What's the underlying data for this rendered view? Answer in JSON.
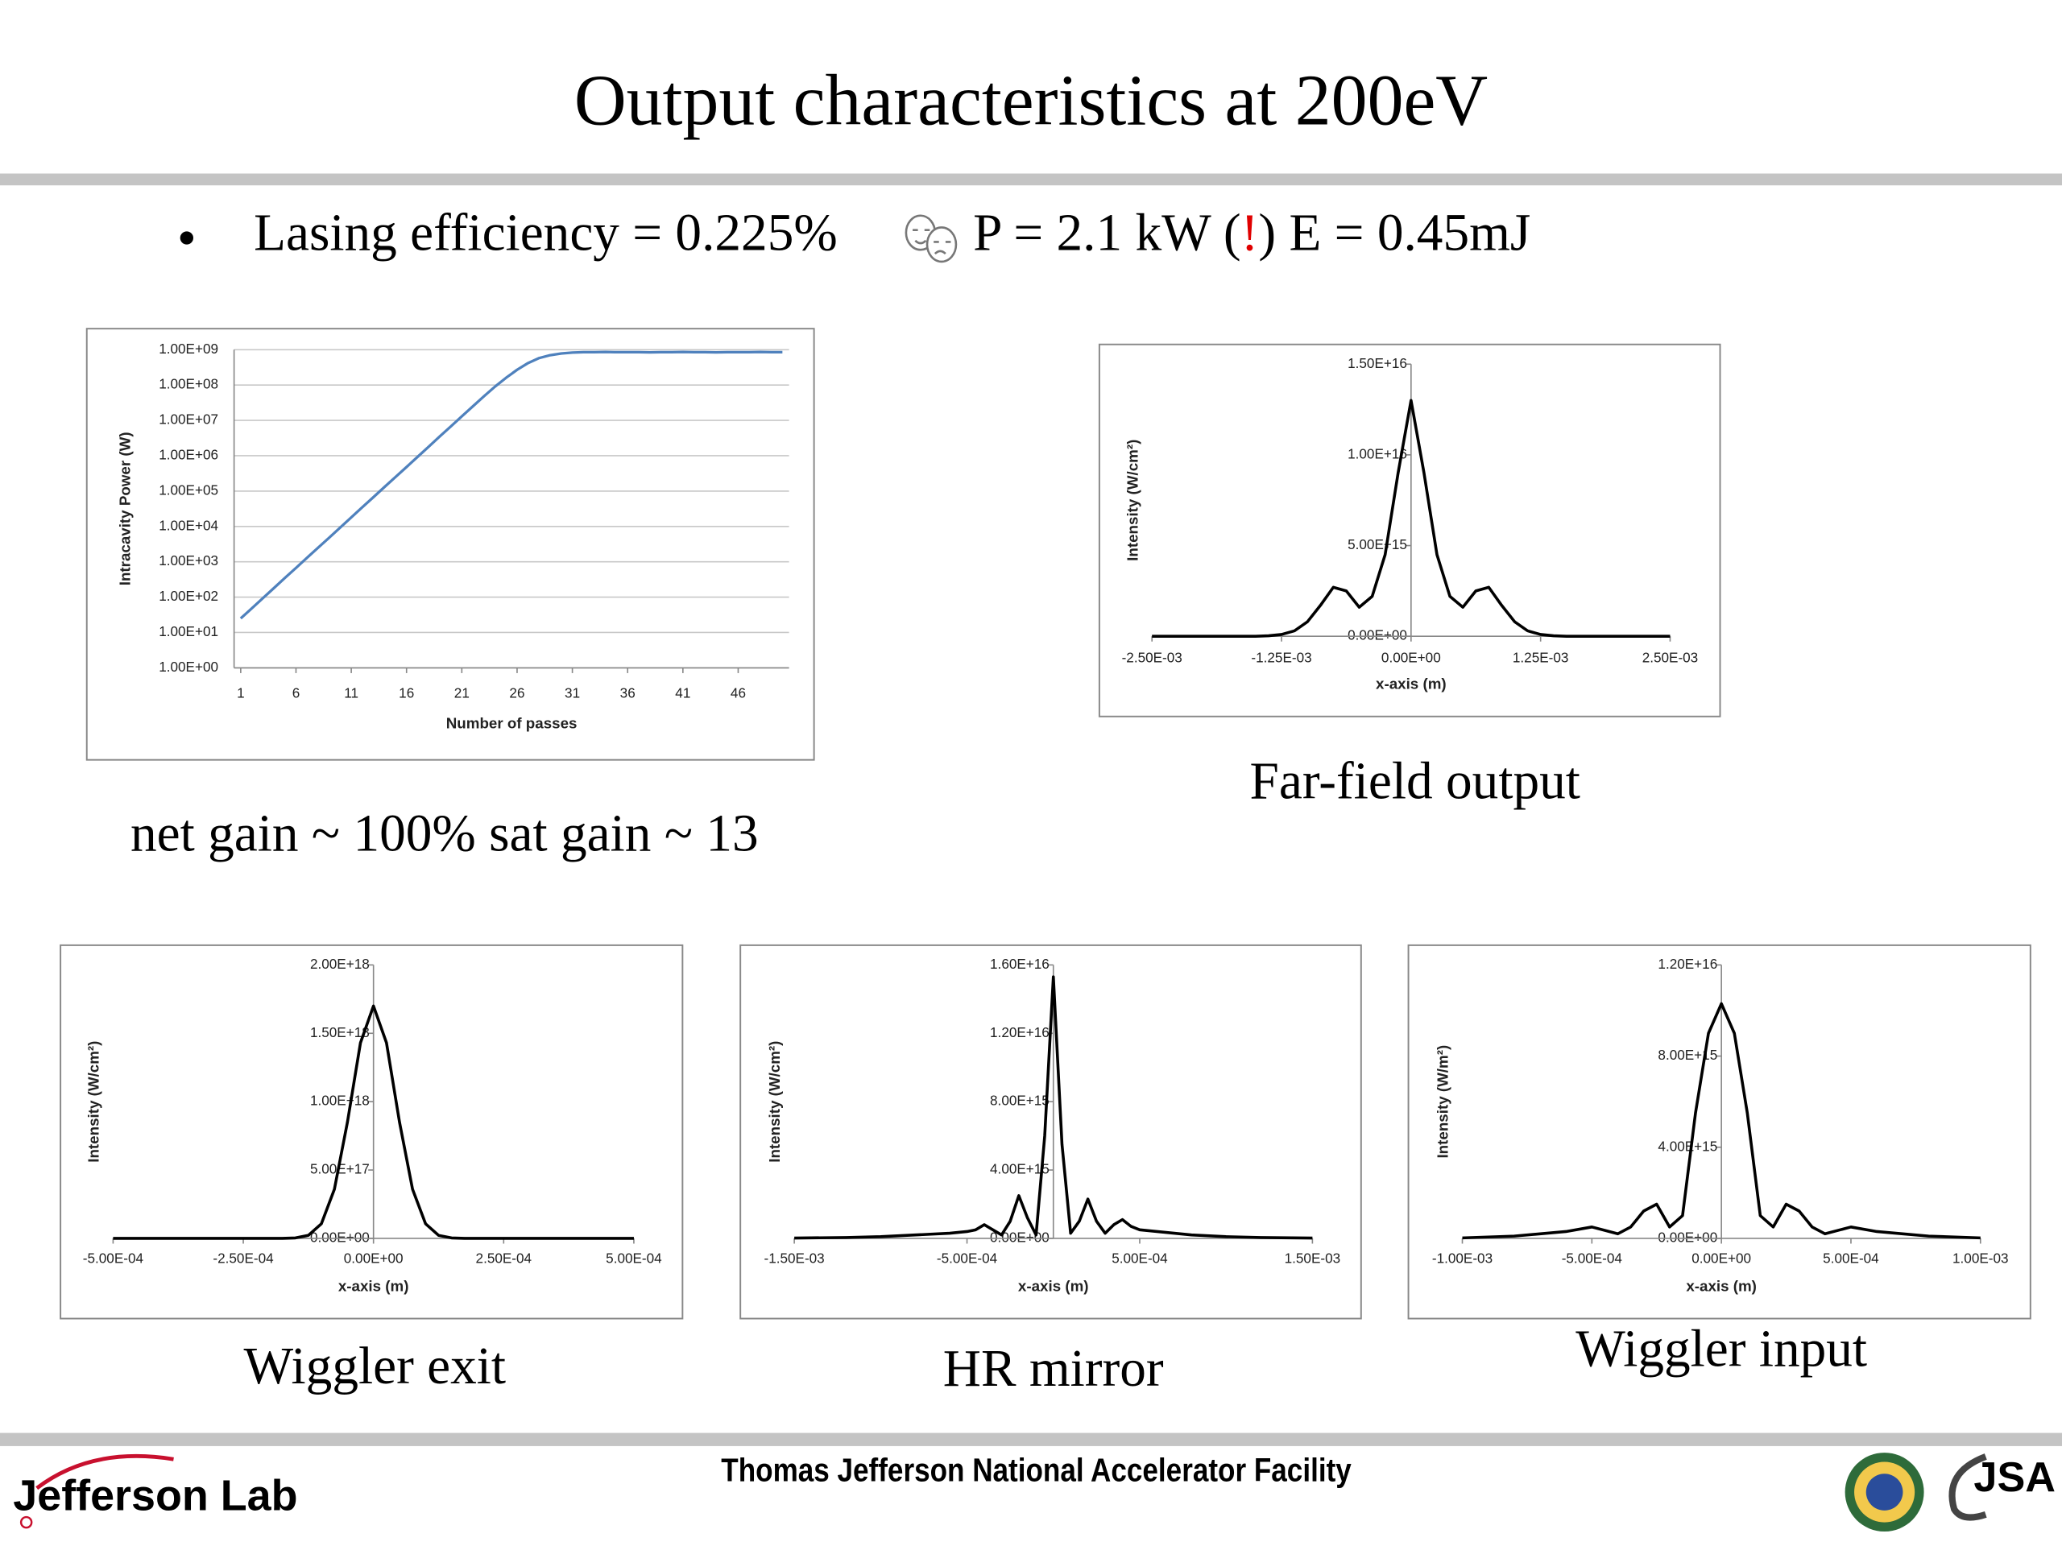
{
  "title": "Output characteristics at 200eV",
  "bullet": {
    "lead": "Lasing efficiency = 0.225%",
    "power": "P = 2.1 kW (",
    "alert": "!",
    "energy": ") E = 0.45mJ"
  },
  "footer": {
    "lab": "Jefferson Lab",
    "facility": "Thomas Jefferson National Accelerator Facility",
    "jsa": "JSA"
  },
  "chart_data": [
    {
      "type": "line",
      "caption": "net gain ~ 100% sat gain ~ 13",
      "x_label": "Number of passes",
      "y_label": "Intracavity Power (W)",
      "color": "#4f81bd",
      "log_scale": true,
      "grid": true,
      "x": [
        1,
        2,
        3,
        4,
        5,
        6,
        7,
        8,
        9,
        10,
        11,
        12,
        13,
        14,
        15,
        16,
        17,
        18,
        19,
        20,
        21,
        22,
        23,
        24,
        25,
        26,
        27,
        28,
        29,
        30,
        31,
        32,
        33,
        34,
        35,
        36,
        37,
        38,
        39,
        40,
        41,
        42,
        43,
        44,
        45,
        46,
        47,
        48,
        49,
        50
      ],
      "values": [
        25,
        48,
        93,
        180,
        350,
        670,
        1300,
        2500,
        4800,
        9300,
        18000,
        35000,
        67000,
        130000,
        250000,
        480000,
        930000,
        1800000,
        3500000,
        6700000,
        13000000,
        25000000,
        48000000,
        90000000,
        160000000,
        270000000,
        420000000,
        580000000,
        700000000,
        780000000,
        830000000,
        850000000,
        850000000,
        860000000,
        850000000,
        850000000,
        850000000,
        840000000,
        850000000,
        850000000,
        860000000,
        850000000,
        850000000,
        840000000,
        850000000,
        850000000,
        850000000,
        860000000,
        850000000,
        850000000
      ],
      "xlim": [
        0.4,
        50.6
      ],
      "xticks": [
        1,
        6,
        11,
        16,
        21,
        26,
        31,
        36,
        41,
        46
      ],
      "ylim": [
        1,
        1000000000
      ],
      "yticks": [
        {
          "value": 1,
          "label": "1.00E+00"
        },
        {
          "value": 10,
          "label": "1.00E+01"
        },
        {
          "value": 100,
          "label": "1.00E+02"
        },
        {
          "value": 1000,
          "label": "1.00E+03"
        },
        {
          "value": 10000,
          "label": "1.00E+04"
        },
        {
          "value": 100000,
          "label": "1.00E+05"
        },
        {
          "value": 1000000,
          "label": "1.00E+06"
        },
        {
          "value": 10000000,
          "label": "1.00E+07"
        },
        {
          "value": 100000000,
          "label": "1.00E+08"
        },
        {
          "value": 1000000000,
          "label": "1.00E+09"
        }
      ]
    },
    {
      "type": "line",
      "caption": "Far-field output",
      "x_label": "x-axis (m)",
      "y_label": "Intensity (W/cm²)",
      "color": "#000000",
      "x": [
        -0.0025,
        -0.002375,
        -0.00225,
        -0.002125,
        -0.002,
        -0.001875,
        -0.00175,
        -0.001625,
        -0.0015,
        -0.001375,
        -0.00125,
        -0.001125,
        -0.001,
        -0.000875,
        -0.00075,
        -0.000625,
        -0.0005,
        -0.000375,
        -0.00025,
        -0.000125,
        0,
        0.000125,
        0.00025,
        0.000375,
        0.0005,
        0.000625,
        0.00075,
        0.000875,
        0.001,
        0.001125,
        0.00125,
        0.001375,
        0.0015,
        0.001625,
        0.00175,
        0.001875,
        0.002,
        0.002125,
        0.00225,
        0.002375,
        0.0025
      ],
      "values": [
        0,
        0,
        0,
        0,
        0,
        0,
        0,
        0,
        0,
        30000000000000.0,
        100000000000000.0,
        300000000000000.0,
        800000000000000.0,
        1700000000000000.0,
        2700000000000000.0,
        2500000000000000.0,
        1600000000000000.0,
        2200000000000000.0,
        4500000000000000.0,
        9000000000000000.0,
        1.3e+16,
        9000000000000000.0,
        4500000000000000.0,
        2200000000000000.0,
        1600000000000000.0,
        2500000000000000.0,
        2700000000000000.0,
        1700000000000000.0,
        800000000000000.0,
        300000000000000.0,
        100000000000000.0,
        30000000000000.0,
        0,
        0,
        0,
        0,
        0,
        0,
        0,
        0,
        0
      ],
      "xlim": [
        -0.0025,
        0.0025
      ],
      "xticks": [
        {
          "value": -0.0025,
          "label": "-2.50E-03"
        },
        {
          "value": -0.00125,
          "label": "-1.25E-03"
        },
        {
          "value": 0,
          "label": "0.00E+00"
        },
        {
          "value": 0.00125,
          "label": "1.25E-03"
        },
        {
          "value": 0.0025,
          "label": "2.50E-03"
        }
      ],
      "ylim": [
        0,
        1.5e+16
      ],
      "yticks": [
        {
          "value": 0,
          "label": "0.00E+00"
        },
        {
          "value": 5000000000000000.0,
          "label": "5.00E+15"
        },
        {
          "value": 1e+16,
          "label": "1.00E+16"
        },
        {
          "value": 1.5e+16,
          "label": "1.50E+16"
        }
      ]
    },
    {
      "type": "line",
      "caption": "Wiggler exit",
      "x_label": "x-axis (m)",
      "y_label": "Intensity (W/cm²)",
      "color": "#000000",
      "x": [
        -0.0005,
        -0.000475,
        -0.00045,
        -0.000425,
        -0.0004,
        -0.000375,
        -0.00035,
        -0.000325,
        -0.0003,
        -0.000275,
        -0.00025,
        -0.000225,
        -0.0002,
        -0.000175,
        -0.00015,
        -0.000125,
        -0.0001,
        -7.5e-05,
        -5e-05,
        -2.5e-05,
        0,
        2.5e-05,
        5e-05,
        7.5e-05,
        0.0001,
        0.000125,
        0.00015,
        0.000175,
        0.0002,
        0.000225,
        0.00025,
        0.000275,
        0.0003,
        0.000325,
        0.00035,
        0.000375,
        0.0004,
        0.000425,
        0.00045,
        0.000475,
        0.0005
      ],
      "values": [
        0,
        0,
        0,
        0,
        0,
        0,
        0,
        0,
        0,
        0,
        0,
        0,
        0,
        0,
        3300000000000000.0,
        2.2e+16,
        1.07e+17,
        3.6e+17,
        8.5e+17,
        1.43e+18,
        1.7e+18,
        1.43e+18,
        8.5e+17,
        3.6e+17,
        1.07e+17,
        2.2e+16,
        3300000000000000.0,
        0,
        0,
        0,
        0,
        0,
        0,
        0,
        0,
        0,
        0,
        0,
        0,
        0,
        0
      ],
      "xlim": [
        -0.0005,
        0.0005
      ],
      "xticks": [
        {
          "value": -0.0005,
          "label": "-5.00E-04"
        },
        {
          "value": -0.00025,
          "label": "-2.50E-04"
        },
        {
          "value": 0,
          "label": "0.00E+00"
        },
        {
          "value": 0.00025,
          "label": "2.50E-04"
        },
        {
          "value": 0.0005,
          "label": "5.00E-04"
        }
      ],
      "ylim": [
        0,
        2e+18
      ],
      "yticks": [
        {
          "value": 0,
          "label": "0.00E+00"
        },
        {
          "value": 5e+17,
          "label": "5.00E+17"
        },
        {
          "value": 1e+18,
          "label": "1.00E+18"
        },
        {
          "value": 1.5e+18,
          "label": "1.50E+18"
        },
        {
          "value": 2e+18,
          "label": "2.00E+18"
        }
      ]
    },
    {
      "type": "line",
      "caption": "HR mirror",
      "x_label": "x-axis (m)",
      "y_label": "Intensity (W/cm²)",
      "color": "#000000",
      "x": [
        -0.0015,
        -0.0012,
        -0.001,
        -0.0008,
        -0.0006,
        -0.0005,
        -0.00045,
        -0.0004,
        -0.00035,
        -0.0003,
        -0.00025,
        -0.0002,
        -0.00015,
        -0.0001,
        -5e-05,
        0,
        5e-05,
        0.0001,
        0.00015,
        0.0002,
        0.00025,
        0.0003,
        0.00035,
        0.0004,
        0.00045,
        0.0005,
        0.0006,
        0.0008,
        0.001,
        0.0012,
        0.0015
      ],
      "values": [
        20000000000000.0,
        50000000000000.0,
        100000000000000.0,
        200000000000000.0,
        300000000000000.0,
        400000000000000.0,
        500000000000000.0,
        800000000000000.0,
        500000000000000.0,
        200000000000000.0,
        1000000000000000.0,
        2500000000000000.0,
        1200000000000000.0,
        200000000000000.0,
        6000000000000000.0,
        1.53e+16,
        5500000000000000.0,
        300000000000000.0,
        1000000000000000.0,
        2300000000000000.0,
        1000000000000000.0,
        300000000000000.0,
        800000000000000.0,
        1100000000000000.0,
        700000000000000.0,
        500000000000000.0,
        400000000000000.0,
        200000000000000.0,
        100000000000000.0,
        50000000000000.0,
        20000000000000.0
      ],
      "xlim": [
        -0.0015,
        0.0015
      ],
      "xticks": [
        {
          "value": -0.0015,
          "label": "-1.50E-03"
        },
        {
          "value": -0.0005,
          "label": "-5.00E-04"
        },
        {
          "value": 0.0005,
          "label": "5.00E-04"
        },
        {
          "value": 0.0015,
          "label": "1.50E-03"
        }
      ],
      "ylim": [
        0,
        1.6e+16
      ],
      "yticks": [
        {
          "value": 0,
          "label": "0.00E+00"
        },
        {
          "value": 4000000000000000.0,
          "label": "4.00E+15"
        },
        {
          "value": 8000000000000000.0,
          "label": "8.00E+15"
        },
        {
          "value": 1.2e+16,
          "label": "1.20E+16"
        },
        {
          "value": 1.6e+16,
          "label": "1.60E+16"
        }
      ]
    },
    {
      "type": "line",
      "caption": "Wiggler input",
      "x_label": "x-axis (m)",
      "y_label": "Intensity (W/m²)",
      "color": "#000000",
      "x": [
        -0.001,
        -0.0008,
        -0.0007,
        -0.0006,
        -0.0005,
        -0.0004,
        -0.00035,
        -0.0003,
        -0.00025,
        -0.0002,
        -0.00015,
        -0.0001,
        -5e-05,
        0,
        5e-05,
        0.0001,
        0.00015,
        0.0002,
        0.00025,
        0.0003,
        0.00035,
        0.0004,
        0.0005,
        0.0006,
        0.0007,
        0.0008,
        0.001
      ],
      "values": [
        20000000000000.0,
        100000000000000.0,
        200000000000000.0,
        300000000000000.0,
        500000000000000.0,
        200000000000000.0,
        500000000000000.0,
        1200000000000000.0,
        1500000000000000.0,
        500000000000000.0,
        1000000000000000.0,
        5500000000000000.0,
        9000000000000000.0,
        1.03e+16,
        9000000000000000.0,
        5500000000000000.0,
        1000000000000000.0,
        500000000000000.0,
        1500000000000000.0,
        1200000000000000.0,
        500000000000000.0,
        200000000000000.0,
        500000000000000.0,
        300000000000000.0,
        200000000000000.0,
        100000000000000.0,
        20000000000000.0
      ],
      "xlim": [
        -0.001,
        0.001
      ],
      "xticks": [
        {
          "value": -0.001,
          "label": "-1.00E-03"
        },
        {
          "value": -0.0005,
          "label": "-5.00E-04"
        },
        {
          "value": 0,
          "label": "0.00E+00"
        },
        {
          "value": 0.0005,
          "label": "5.00E-04"
        },
        {
          "value": 0.001,
          "label": "1.00E-03"
        }
      ],
      "ylim": [
        0,
        1.2e+16
      ],
      "yticks": [
        {
          "value": 0,
          "label": "0.00E+00"
        },
        {
          "value": 4000000000000000.0,
          "label": "4.00E+15"
        },
        {
          "value": 8000000000000000.0,
          "label": "8.00E+15"
        },
        {
          "value": 1.2e+16,
          "label": "1.20E+16"
        }
      ]
    }
  ]
}
